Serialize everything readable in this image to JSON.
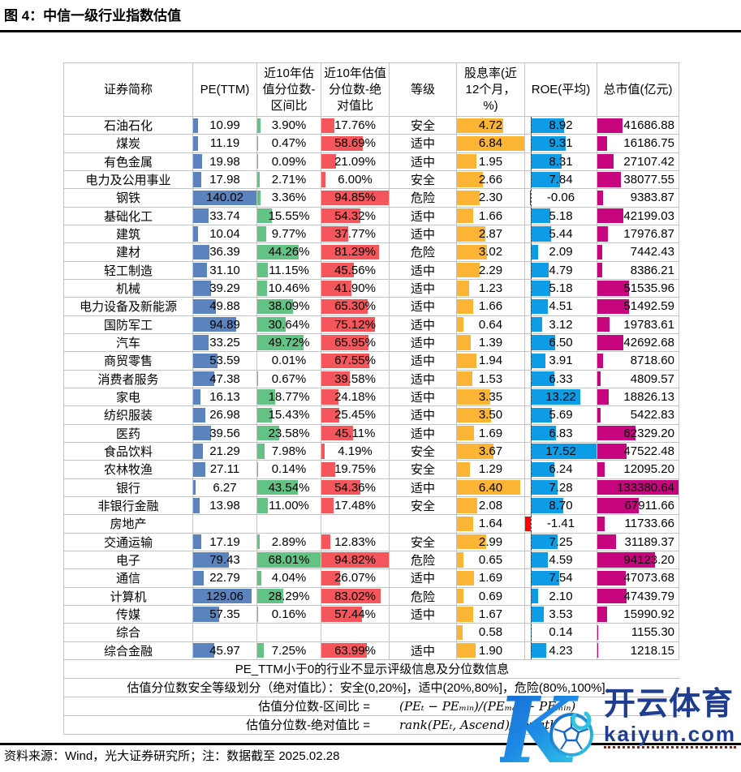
{
  "title": "图 4：中信一级行业指数估值",
  "source_note": "资料来源：Wind，光大证券研究所；注：数据截至 2025.02.28",
  "watermark": {
    "logo_letter": "K",
    "brand": "开云体育",
    "domain": "kaiyun.com"
  },
  "colors": {
    "pe_bar": "#5b83bd",
    "interval_bar": "#63c384",
    "absolute_bar": "#f4565c",
    "dividend_bar": "#fbb434",
    "roe_bar": "#0d9de6",
    "roe_negative_bar": "#fe0000",
    "mcap_bar": "#c6057e",
    "grid": "#c4c4c4"
  },
  "table": {
    "headers": [
      "证券简称",
      "PE(TTM)",
      "近10年估值分位数-区间比",
      "近10年估值分位数-绝对值比",
      "等级",
      "股息率(近12个月，%)",
      "ROE(平均)",
      "总市值(亿元)"
    ],
    "rows": [
      [
        "石油石化",
        "10.99",
        "3.90%",
        "17.76%",
        "安全",
        "4.72",
        "8.92",
        "41686.88"
      ],
      [
        "煤炭",
        "11.19",
        "0.47%",
        "58.69%",
        "适中",
        "6.84",
        "9.31",
        "16186.75"
      ],
      [
        "有色金属",
        "19.98",
        "0.09%",
        "21.09%",
        "适中",
        "1.95",
        "8.31",
        "27107.42"
      ],
      [
        "电力及公用事业",
        "17.98",
        "2.71%",
        "6.00%",
        "安全",
        "2.66",
        "7.84",
        "38077.55"
      ],
      [
        "钢铁",
        "140.02",
        "3.36%",
        "94.85%",
        "危险",
        "2.30",
        "-0.06",
        "9383.87"
      ],
      [
        "基础化工",
        "33.74",
        "15.55%",
        "54.32%",
        "适中",
        "1.66",
        "5.18",
        "42199.03"
      ],
      [
        "建筑",
        "10.04",
        "9.77%",
        "37.77%",
        "适中",
        "2.87",
        "5.44",
        "17976.87"
      ],
      [
        "建材",
        "36.39",
        "44.26%",
        "81.29%",
        "危险",
        "3.02",
        "2.09",
        "7442.43"
      ],
      [
        "轻工制造",
        "31.10",
        "11.15%",
        "45.56%",
        "适中",
        "2.29",
        "4.79",
        "8386.21"
      ],
      [
        "机械",
        "39.29",
        "10.46%",
        "41.90%",
        "适中",
        "1.23",
        "5.18",
        "51535.96"
      ],
      [
        "电力设备及新能源",
        "49.88",
        "38.09%",
        "65.30%",
        "适中",
        "1.66",
        "4.51",
        "51492.59"
      ],
      [
        "国防军工",
        "94.89",
        "30.64%",
        "75.12%",
        "适中",
        "0.64",
        "3.12",
        "19783.61"
      ],
      [
        "汽车",
        "33.25",
        "49.72%",
        "65.95%",
        "适中",
        "1.39",
        "6.50",
        "42692.68"
      ],
      [
        "商贸零售",
        "53.59",
        "0.01%",
        "67.55%",
        "适中",
        "1.94",
        "3.91",
        "8718.60"
      ],
      [
        "消费者服务",
        "47.38",
        "0.67%",
        "39.58%",
        "适中",
        "1.53",
        "6.33",
        "4809.57"
      ],
      [
        "家电",
        "16.13",
        "18.77%",
        "24.18%",
        "适中",
        "3.35",
        "13.22",
        "18826.13"
      ],
      [
        "纺织服装",
        "26.98",
        "15.43%",
        "25.45%",
        "适中",
        "3.50",
        "5.69",
        "5422.83"
      ],
      [
        "医药",
        "39.56",
        "23.58%",
        "45.11%",
        "适中",
        "1.69",
        "6.83",
        "62329.20"
      ],
      [
        "食品饮料",
        "21.29",
        "7.98%",
        "4.19%",
        "安全",
        "3.67",
        "17.52",
        "47522.48"
      ],
      [
        "农林牧渔",
        "27.11",
        "0.14%",
        "19.75%",
        "安全",
        "1.29",
        "6.24",
        "12095.20"
      ],
      [
        "银行",
        "6.27",
        "43.54%",
        "54.36%",
        "适中",
        "6.40",
        "7.28",
        "133380.64"
      ],
      [
        "非银行金融",
        "13.98",
        "11.00%",
        "17.48%",
        "安全",
        "2.08",
        "8.70",
        "67911.66"
      ],
      [
        "房地产",
        "",
        "",
        "",
        "",
        "1.64",
        "-1.41",
        "11733.66"
      ],
      [
        "交通运输",
        "17.19",
        "2.89%",
        "12.83%",
        "安全",
        "2.99",
        "7.25",
        "31189.37"
      ],
      [
        "电子",
        "79.43",
        "68.01%",
        "94.82%",
        "危险",
        "0.65",
        "4.59",
        "94123.20"
      ],
      [
        "通信",
        "22.79",
        "4.04%",
        "26.07%",
        "适中",
        "1.69",
        "7.54",
        "47073.68"
      ],
      [
        "计算机",
        "129.06",
        "28.29%",
        "83.02%",
        "危险",
        "0.69",
        "2.10",
        "47439.79"
      ],
      [
        "传媒",
        "57.35",
        "0.16%",
        "57.44%",
        "适中",
        "1.67",
        "3.53",
        "15990.92"
      ],
      [
        "综合",
        "",
        "",
        "",
        "",
        "0.58",
        "0.14",
        "1155.30"
      ],
      [
        "综合金融",
        "45.97",
        "7.25%",
        "63.99%",
        "适中",
        "1.90",
        "4.23",
        "1218.15"
      ]
    ],
    "footnotes": {
      "note1": "PE_TTM小于0的行业不显示评级信息及分位数信息",
      "note2": "估值分位数安全等级划分（绝对值比）：安全(0,20%]，适中(20%,80%]，危险(80%,100%]。",
      "formula1_label": "估值分位数-区间比 =",
      "formula1": "(PEₜ − PEₘᵢₙ)/(PEₘₐₓ − PEₘᵢₙ)",
      "formula2_label": "估值分位数-绝对值比 =",
      "formula2": "rank(PEₜ, Ascend)/Length(PE)"
    }
  }
}
